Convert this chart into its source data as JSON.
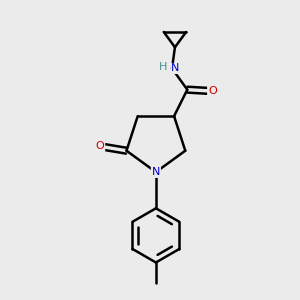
{
  "background_color": "#ebebeb",
  "atom_colors": {
    "C": "#000000",
    "N": "#0000cc",
    "O": "#cc0000",
    "H": "#4a9090"
  },
  "bond_color": "#000000",
  "bond_width": 1.8,
  "figsize": [
    3.0,
    3.0
  ],
  "dpi": 100,
  "xlim": [
    0,
    10
  ],
  "ylim": [
    0,
    10
  ]
}
